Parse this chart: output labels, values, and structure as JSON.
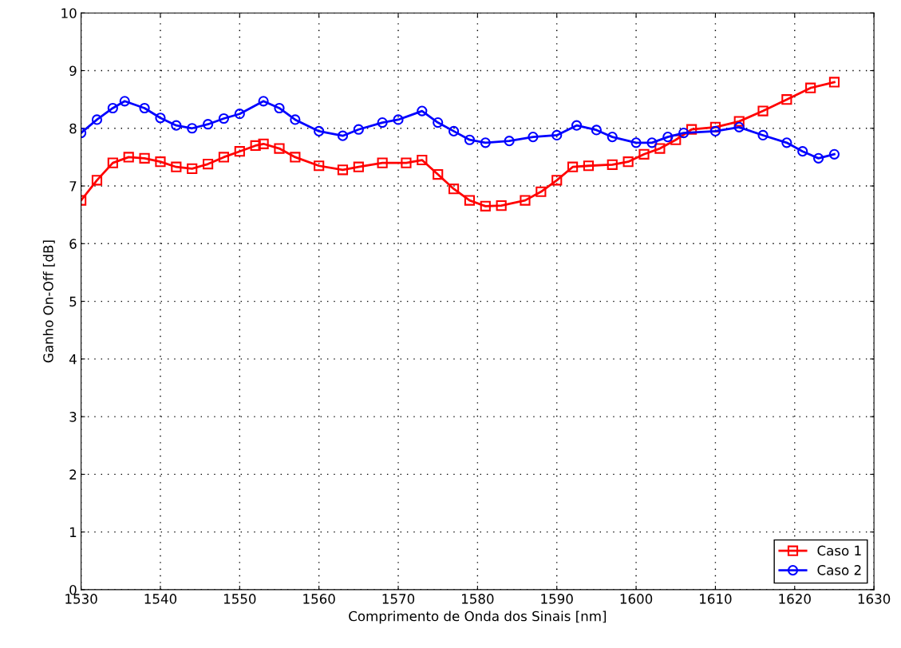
{
  "chart_data": {
    "type": "line",
    "xlabel": "Comprimento de Onda dos Sinais [nm]",
    "ylabel": "Ganho On-Off [dB]",
    "xlim": [
      1530,
      1630
    ],
    "xticks": [
      1530,
      1540,
      1550,
      1560,
      1570,
      1580,
      1590,
      1600,
      1610,
      1620,
      1630
    ],
    "ylim": [
      0,
      10
    ],
    "yticks": [
      0,
      1,
      2,
      3,
      4,
      5,
      6,
      7,
      8,
      9,
      10
    ],
    "grid": true,
    "legend": "bottom right",
    "line_style": "solid",
    "series": [
      {
        "name": "Caso 1",
        "color": "#ff0000",
        "marker": "square",
        "x": [
          1530,
          1532,
          1534,
          1536,
          1538,
          1540,
          1542,
          1544,
          1546,
          1548,
          1550,
          1552,
          1553,
          1555,
          1557,
          1560,
          1563,
          1565,
          1568,
          1571,
          1573,
          1575,
          1577,
          1579,
          1581,
          1583,
          1586,
          1588,
          1590,
          1592,
          1594,
          1597,
          1599,
          1601,
          1603,
          1605,
          1607,
          1610,
          1613,
          1616,
          1619,
          1622,
          1625
        ],
        "values": [
          6.75,
          7.1,
          7.4,
          7.5,
          7.48,
          7.42,
          7.33,
          7.3,
          7.38,
          7.5,
          7.6,
          7.7,
          7.73,
          7.65,
          7.5,
          7.35,
          7.28,
          7.33,
          7.4,
          7.4,
          7.45,
          7.2,
          6.95,
          6.75,
          6.65,
          6.66,
          6.75,
          6.9,
          7.1,
          7.33,
          7.35,
          7.37,
          7.42,
          7.55,
          7.65,
          7.8,
          7.98,
          8.02,
          8.12,
          8.3,
          8.5,
          8.7,
          8.8
        ]
      },
      {
        "name": "Caso 2",
        "color": "#0000ff",
        "marker": "circle",
        "x": [
          1530,
          1532,
          1534,
          1535.5,
          1538,
          1540,
          1542,
          1544,
          1546,
          1548,
          1550,
          1553,
          1555,
          1557,
          1560,
          1563,
          1565,
          1568,
          1570,
          1573,
          1575,
          1577,
          1579,
          1581,
          1584,
          1587,
          1590,
          1592.5,
          1595,
          1597,
          1600,
          1602,
          1604,
          1606,
          1610,
          1613,
          1616,
          1619,
          1621,
          1623,
          1625
        ],
        "values": [
          7.92,
          8.15,
          8.35,
          8.47,
          8.35,
          8.18,
          8.05,
          8.0,
          8.07,
          8.17,
          8.25,
          8.47,
          8.35,
          8.15,
          7.95,
          7.87,
          7.98,
          8.1,
          8.15,
          8.3,
          8.1,
          7.95,
          7.8,
          7.75,
          7.78,
          7.85,
          7.88,
          8.05,
          7.97,
          7.85,
          7.75,
          7.75,
          7.85,
          7.92,
          7.95,
          8.02,
          7.88,
          7.75,
          7.6,
          7.48,
          7.55
        ]
      }
    ]
  }
}
